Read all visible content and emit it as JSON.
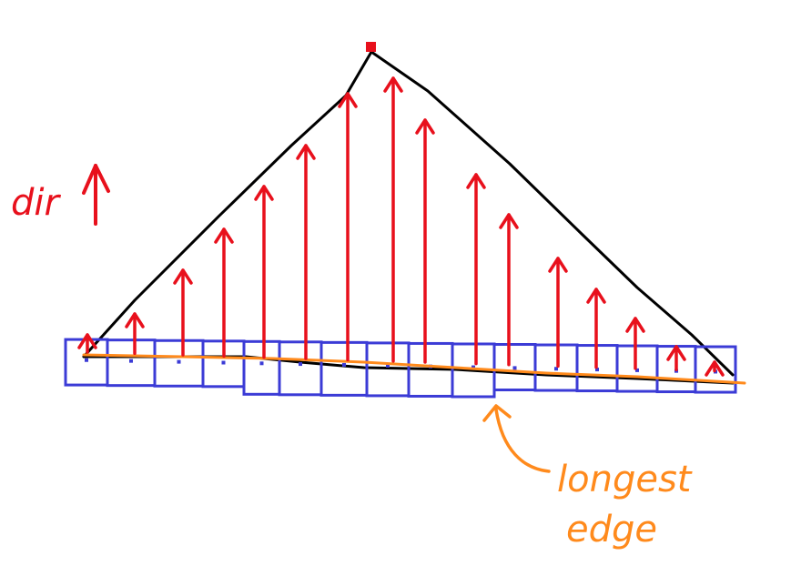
{
  "labels": {
    "direction": "dir",
    "longest_edge_line1": "longest",
    "longest_edge_line2": "edge"
  },
  "colors": {
    "triangle": "#000000",
    "arrows": "#e8101c",
    "cells": "#3b3bd6",
    "longest_edge": "#ff8a1c",
    "apex": "#e8101c",
    "background": "#ffffff"
  },
  "content": {
    "arrow_count": 16,
    "cell_count": 17
  }
}
